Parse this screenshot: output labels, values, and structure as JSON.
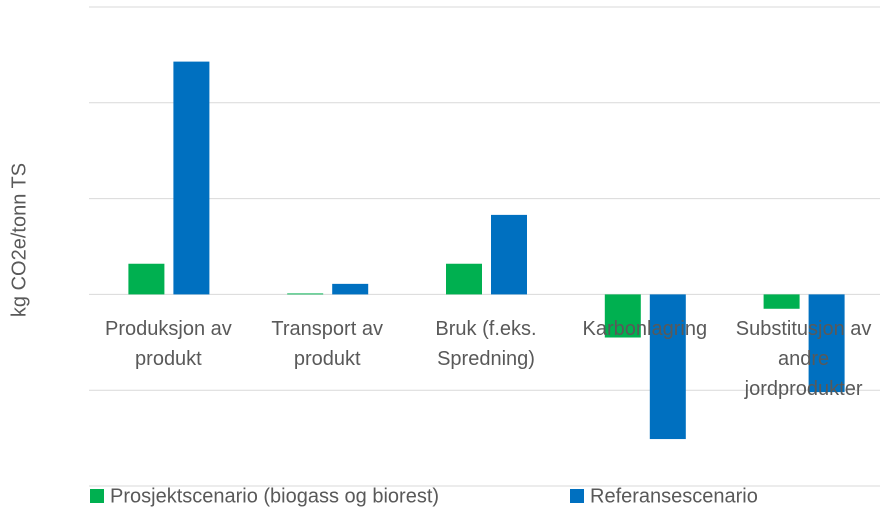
{
  "chart_data": {
    "type": "bar",
    "ylabel": "kg CO2e/tonn TS",
    "categories": [
      "Produksjon av produkt",
      "Transport av produkt",
      "Bruk (f.eks. Spredning)",
      "Karbonlagring",
      "Substitusjon av andre jordprodukter"
    ],
    "series": [
      {
        "name": "Prosjektscenario (biogass og biorest)",
        "color": "#00b050",
        "values": [
          32,
          1,
          32,
          -45,
          -15
        ]
      },
      {
        "name": "Referansescenario",
        "color": "#0070c0",
        "values": [
          243,
          11,
          83,
          -151,
          -102
        ]
      }
    ],
    "ylim": [
      -200,
      300
    ],
    "yticks": [
      -200,
      -100,
      0,
      100,
      200,
      300
    ],
    "grid": true,
    "legend": "bottom"
  }
}
